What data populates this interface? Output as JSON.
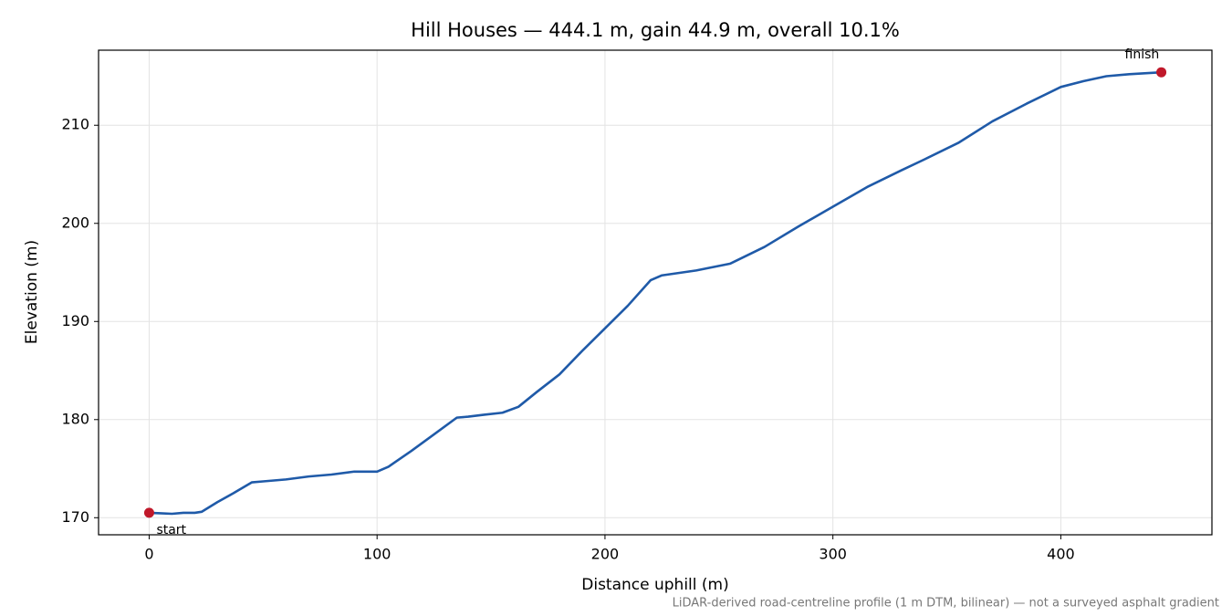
{
  "chart_data": {
    "type": "line",
    "title": "Hill Houses — 444.1 m, gain 44.9 m, overall 10.1%",
    "xlabel": "Distance uphill (m)",
    "ylabel": "Elevation (m)",
    "note": "LiDAR-derived road-centreline profile (1 m DTM, bilinear) — not a surveyed asphalt gradient",
    "x": [
      0,
      5,
      10,
      15,
      20,
      23,
      30,
      37,
      45,
      50,
      60,
      70,
      80,
      90,
      100,
      105,
      115,
      125,
      135,
      140,
      147,
      155,
      162,
      170,
      180,
      190,
      200,
      210,
      220,
      225,
      240,
      255,
      270,
      285,
      300,
      315,
      330,
      340,
      355,
      370,
      385,
      400,
      410,
      420,
      430,
      444.1
    ],
    "series": [
      {
        "color": "#1f5aa8",
        "values": [
          170.5,
          170.45,
          170.4,
          170.5,
          170.5,
          170.6,
          171.6,
          172.5,
          173.6,
          173.7,
          173.9,
          174.2,
          174.4,
          174.7,
          174.7,
          175.2,
          176.8,
          178.5,
          180.2,
          180.3,
          180.5,
          180.7,
          181.3,
          182.8,
          184.6,
          187.0,
          189.3,
          191.6,
          194.2,
          194.7,
          195.2,
          195.9,
          197.6,
          199.7,
          201.7,
          203.7,
          205.4,
          206.5,
          208.2,
          210.4,
          212.2,
          213.9,
          214.5,
          215.0,
          215.2,
          215.4
        ]
      }
    ],
    "annotations": [
      {
        "text": "start",
        "x": 0,
        "y": 170.5
      },
      {
        "text": "finish",
        "x": 444.1,
        "y": 215.4
      }
    ],
    "marker_color": "#c0182a",
    "xlim": [
      -22.2,
      466.3
    ],
    "xticks": [
      0,
      100,
      200,
      300,
      400
    ],
    "ylim": [
      168.26,
      217.65
    ],
    "yticks": [
      170,
      180,
      190,
      200,
      210
    ],
    "grid": true
  }
}
